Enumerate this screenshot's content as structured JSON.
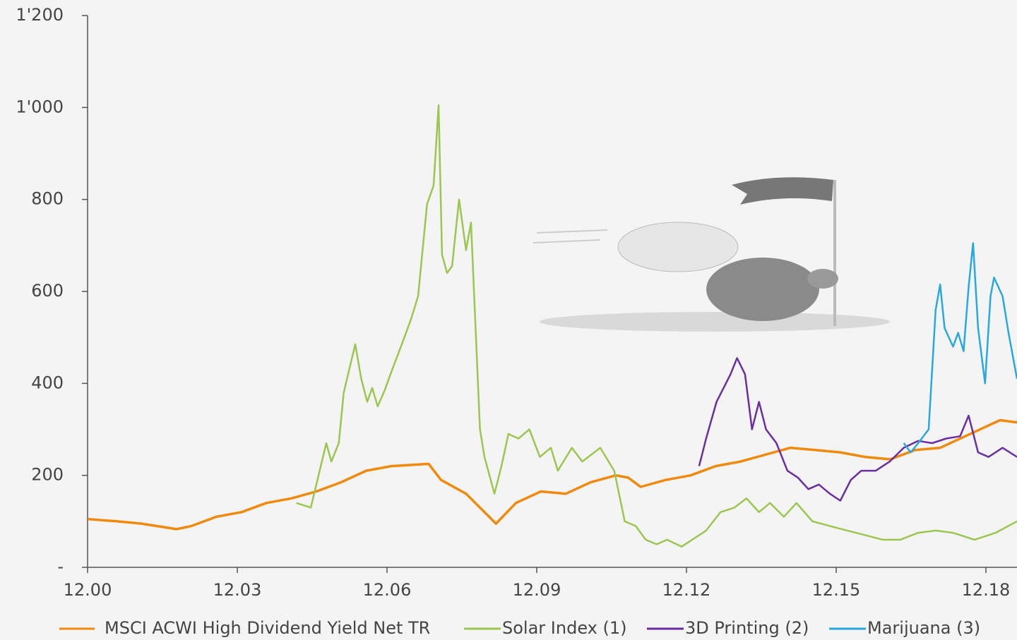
{
  "chart_data": {
    "type": "line",
    "xlim": [
      2000.917,
      2019.54
    ],
    "xticks": [
      {
        "value": 2000.917,
        "label": "12.00"
      },
      {
        "value": 2003.917,
        "label": "12.03"
      },
      {
        "value": 2006.917,
        "label": "12.06"
      },
      {
        "value": 2009.917,
        "label": "12.09"
      },
      {
        "value": 2012.917,
        "label": "12.12"
      },
      {
        "value": 2015.917,
        "label": "12.15"
      },
      {
        "value": 2018.917,
        "label": "12.18"
      }
    ],
    "ylim": [
      0,
      1200
    ],
    "yticks": [
      {
        "value": 0,
        "label": "-"
      },
      200,
      400,
      600,
      800,
      {
        "value": 1000,
        "label": "1'000"
      },
      {
        "value": 1200,
        "label": "1'200"
      }
    ],
    "series": [
      {
        "name": "MSCI ACWI High Dividend Yield Net TR",
        "color": "#f0890c",
        "x": [
          2000.92,
          2001.5,
          2002,
          2002.7,
          2003,
          2003.5,
          2004,
          2004.5,
          2005,
          2005.5,
          2006,
          2006.5,
          2007,
          2007.75,
          2008,
          2008.5,
          2009.1,
          2009.5,
          2010,
          2010.5,
          2011,
          2011.5,
          2011.75,
          2012,
          2012.5,
          2013,
          2013.5,
          2014,
          2014.5,
          2015,
          2015.5,
          2016,
          2016.5,
          2017,
          2017.5,
          2018,
          2018.5,
          2019,
          2019.2,
          2019.54
        ],
        "values": [
          105,
          100,
          95,
          83,
          90,
          110,
          120,
          140,
          150,
          165,
          185,
          210,
          220,
          225,
          190,
          160,
          95,
          140,
          165,
          160,
          185,
          200,
          195,
          175,
          190,
          200,
          220,
          230,
          245,
          260,
          255,
          250,
          240,
          235,
          255,
          260,
          285,
          310,
          320,
          315
        ]
      },
      {
        "name": "Solar Index (1)",
        "color": "#9bc650",
        "x": [
          2005.1,
          2005.39,
          2005.7,
          2005.8,
          2005.95,
          2006.05,
          2006.28,
          2006.4,
          2006.52,
          2006.62,
          2006.73,
          2006.87,
          2007.02,
          2007.23,
          2007.4,
          2007.54,
          2007.72,
          2007.85,
          2007.95,
          2008.02,
          2008.12,
          2008.22,
          2008.36,
          2008.5,
          2008.6,
          2008.78,
          2008.87,
          2009.07,
          2009.21,
          2009.35,
          2009.55,
          2009.77,
          2009.98,
          2010.2,
          2010.34,
          2010.62,
          2010.83,
          2011.19,
          2011.47,
          2011.68,
          2011.9,
          2012.1,
          2012.32,
          2012.53,
          2012.82,
          2013.03,
          2013.31,
          2013.6,
          2013.88,
          2014.12,
          2014.37,
          2014.59,
          2014.87,
          2015.12,
          2015.44,
          2015.79,
          2016.14,
          2016.5,
          2016.85,
          2017.2,
          2017.56,
          2017.91,
          2018.26,
          2018.69,
          2019.11,
          2019.54
        ],
        "values": [
          140,
          130,
          270,
          230,
          270,
          380,
          485,
          410,
          360,
          390,
          350,
          385,
          430,
          490,
          540,
          590,
          790,
          830,
          1005,
          680,
          640,
          655,
          800,
          690,
          750,
          300,
          240,
          160,
          220,
          290,
          280,
          300,
          240,
          260,
          210,
          260,
          230,
          260,
          210,
          100,
          90,
          60,
          50,
          60,
          45,
          60,
          80,
          120,
          130,
          150,
          120,
          140,
          110,
          140,
          100,
          90,
          80,
          70,
          60,
          60,
          75,
          80,
          75,
          60,
          75,
          100
        ]
      },
      {
        "name": "3D Printing (2)",
        "color": "#6a2ea0",
        "x": [
          2013.17,
          2013.31,
          2013.52,
          2013.66,
          2013.8,
          2013.93,
          2014.09,
          2014.23,
          2014.37,
          2014.51,
          2014.72,
          2014.94,
          2015.15,
          2015.36,
          2015.57,
          2015.79,
          2016.0,
          2016.21,
          2016.42,
          2016.71,
          2016.99,
          2017.27,
          2017.56,
          2017.84,
          2018.12,
          2018.4,
          2018.57,
          2018.76,
          2018.97,
          2019.25,
          2019.54
        ],
        "values": [
          220,
          280,
          360,
          390,
          420,
          455,
          420,
          300,
          360,
          300,
          270,
          210,
          195,
          170,
          180,
          160,
          145,
          190,
          210,
          210,
          230,
          260,
          275,
          270,
          280,
          285,
          330,
          250,
          240,
          260,
          240
        ]
      },
      {
        "name": "Marijuana (3)",
        "color": "#29a8e0",
        "x": [
          2017.27,
          2017.41,
          2017.56,
          2017.77,
          2017.91,
          2018.0,
          2018.09,
          2018.26,
          2018.36,
          2018.47,
          2018.57,
          2018.66,
          2018.76,
          2018.9,
          2019.01,
          2019.08,
          2019.25,
          2019.37,
          2019.54
        ],
        "values": [
          270,
          250,
          270,
          300,
          560,
          615,
          520,
          480,
          510,
          470,
          610,
          705,
          520,
          400,
          590,
          630,
          590,
          510,
          410
        ]
      }
    ]
  }
}
